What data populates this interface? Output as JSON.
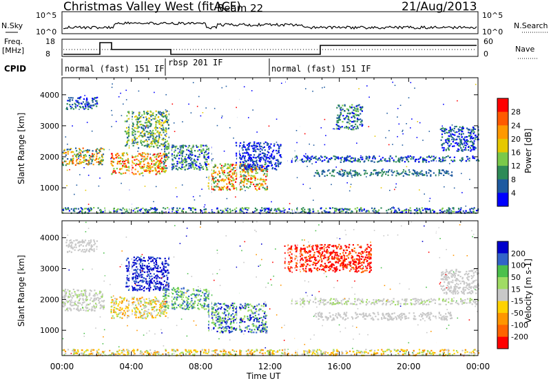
{
  "header": {
    "station": "Christmas Valley West (fitACF)",
    "beam": "Beam 22",
    "date": "21/Aug/2013"
  },
  "strip": {
    "nsky_label": "N.Sky",
    "nsky_ticks": [
      "10^5",
      "10^0"
    ],
    "nsearch_label": "N.Search",
    "nsearch_ticks": [
      "10^5",
      "10^0"
    ],
    "freq_label_1": "Freq.",
    "freq_label_2": "[MHz]",
    "freq_ticks": [
      "18",
      "8"
    ],
    "nave_label": "Nave",
    "nave_ticks": [
      "60",
      "0"
    ],
    "cpid_label": "CPID"
  },
  "chart_data": [
    {
      "type": "heatmap",
      "name": "power",
      "ylabel": "Slant Range [km]",
      "yticks": [
        1000,
        2000,
        3000,
        4000
      ],
      "ylim": [
        180,
        4550
      ],
      "xlim_hours": [
        0,
        24
      ],
      "colorbar": {
        "label": "Power [dB]",
        "ticks": [
          "28",
          "24",
          "20",
          "16",
          "12",
          "8",
          "4"
        ],
        "colors": [
          "#ff0000",
          "#ff5a00",
          "#ff9900",
          "#e6c800",
          "#7ac94a",
          "#2e8b57",
          "#1e5aa0",
          "#0000ff"
        ]
      },
      "scatter_bands": [
        {
          "t0": 0.0,
          "t1": 2.4,
          "r0": 1750,
          "r1": 2300,
          "colors": [
            "#1e5aa0",
            "#2e8b57",
            "#7ac94a",
            "#e6c800",
            "#ff9900",
            "#ff5a00"
          ]
        },
        {
          "t0": 0.2,
          "t1": 2.0,
          "r0": 3550,
          "r1": 3950,
          "colors": [
            "#0000ff",
            "#1e5aa0",
            "#2e8b57"
          ]
        },
        {
          "t0": 2.8,
          "t1": 6.0,
          "r0": 1450,
          "r1": 2150,
          "colors": [
            "#e6c800",
            "#ff9900",
            "#ff5a00",
            "#ff0000",
            "#7ac94a"
          ]
        },
        {
          "t0": 3.6,
          "t1": 6.2,
          "r0": 2300,
          "r1": 3500,
          "colors": [
            "#1e5aa0",
            "#2e8b57",
            "#7ac94a",
            "#e6c800"
          ]
        },
        {
          "t0": 5.8,
          "t1": 8.6,
          "r0": 1600,
          "r1": 2400,
          "colors": [
            "#1e5aa0",
            "#2e8b57",
            "#0000ff",
            "#7ac94a"
          ]
        },
        {
          "t0": 8.4,
          "t1": 11.8,
          "r0": 950,
          "r1": 1800,
          "colors": [
            "#ff0000",
            "#ff5a00",
            "#ff9900",
            "#e6c800",
            "#7ac94a",
            "#2e8b57"
          ]
        },
        {
          "t0": 10.0,
          "t1": 12.6,
          "r0": 1600,
          "r1": 2500,
          "colors": [
            "#0000ff",
            "#1e5aa0"
          ]
        },
        {
          "t0": 13.2,
          "t1": 24.0,
          "r0": 1850,
          "r1": 2050,
          "colors": [
            "#1e5aa0",
            "#0000ff",
            "#2e8b57"
          ]
        },
        {
          "t0": 14.5,
          "t1": 22.5,
          "r0": 1400,
          "r1": 1600,
          "colors": [
            "#1e5aa0",
            "#2e8b57"
          ]
        },
        {
          "t0": 15.8,
          "t1": 17.3,
          "r0": 2900,
          "r1": 3700,
          "colors": [
            "#0000ff",
            "#1e5aa0",
            "#2e8b57",
            "#7ac94a"
          ]
        },
        {
          "t0": 21.8,
          "t1": 24.0,
          "r0": 2200,
          "r1": 3000,
          "colors": [
            "#0000ff",
            "#1e5aa0",
            "#2e8b57"
          ]
        },
        {
          "t0": 0.0,
          "t1": 24.0,
          "r0": 200,
          "r1": 380,
          "colors": [
            "#1e5aa0",
            "#2e8b57",
            "#0000ff",
            "#7ac94a"
          ]
        }
      ]
    },
    {
      "type": "heatmap",
      "name": "velocity",
      "ylabel": "Slant Range [km]",
      "yticks": [
        1000,
        2000,
        3000,
        4000
      ],
      "ylim": [
        180,
        4550
      ],
      "xlim_hours": [
        0,
        24
      ],
      "xticks": [
        "00:00",
        "04:00",
        "08:00",
        "12:00",
        "16:00",
        "20:00",
        "00:00"
      ],
      "xlabel": "Time UT",
      "colorbar": {
        "label": "Velocity [m s-1]",
        "ticks": [
          "200",
          "100",
          "50",
          "15",
          "-15",
          "-50",
          "-100",
          "-200"
        ],
        "colors": [
          "#0000cc",
          "#3264c8",
          "#4cc04c",
          "#a0dc64",
          "#c8c8c8",
          "#ffd200",
          "#ff9600",
          "#ff6400",
          "#ff0000"
        ]
      },
      "scatter_bands": [
        {
          "t0": 0.0,
          "t1": 2.4,
          "r0": 1650,
          "r1": 2350,
          "colors": [
            "#c8c8c8",
            "#c8c8c8",
            "#c8c8c8",
            "#a0dc64"
          ]
        },
        {
          "t0": 0.2,
          "t1": 2.0,
          "r0": 3550,
          "r1": 3950,
          "colors": [
            "#c8c8c8",
            "#c8c8c8"
          ]
        },
        {
          "t0": 2.8,
          "t1": 6.0,
          "r0": 1400,
          "r1": 2100,
          "colors": [
            "#ff9600",
            "#ffd200",
            "#a0dc64",
            "#c8c8c8"
          ]
        },
        {
          "t0": 3.6,
          "t1": 6.2,
          "r0": 2300,
          "r1": 3400,
          "colors": [
            "#0000cc",
            "#3264c8",
            "#0000cc"
          ]
        },
        {
          "t0": 5.8,
          "t1": 8.6,
          "r0": 1700,
          "r1": 2400,
          "colors": [
            "#4cc04c",
            "#a0dc64",
            "#3264c8"
          ]
        },
        {
          "t0": 8.4,
          "t1": 11.8,
          "r0": 950,
          "r1": 1900,
          "colors": [
            "#4cc04c",
            "#a0dc64",
            "#3264c8",
            "#0000cc"
          ]
        },
        {
          "t0": 12.8,
          "t1": 17.8,
          "r0": 2900,
          "r1": 3800,
          "colors": [
            "#ff0000",
            "#ff6400",
            "#ff0000"
          ]
        },
        {
          "t0": 13.2,
          "t1": 24.0,
          "r0": 1850,
          "r1": 2050,
          "colors": [
            "#c8c8c8",
            "#c8c8c8",
            "#a0dc64"
          ]
        },
        {
          "t0": 14.5,
          "t1": 22.5,
          "r0": 1350,
          "r1": 1600,
          "colors": [
            "#c8c8c8",
            "#c8c8c8"
          ]
        },
        {
          "t0": 21.8,
          "t1": 24.0,
          "r0": 2200,
          "r1": 3000,
          "colors": [
            "#c8c8c8",
            "#c8c8c8"
          ]
        },
        {
          "t0": 0.0,
          "t1": 24.0,
          "r0": 200,
          "r1": 400,
          "colors": [
            "#ff9600",
            "#ffd200",
            "#c8c8c8",
            "#a0dc64"
          ]
        }
      ]
    }
  ],
  "cpid_segments": [
    {
      "label": "normal (fast) 151 IF",
      "t0": 0.0,
      "t1": 6.0
    },
    {
      "label": "rbsp 201 IF",
      "t0": 6.0,
      "t1": 12.0
    },
    {
      "label": "normal (fast) 151 IF",
      "t0": 12.0,
      "t1": 24.0
    }
  ]
}
